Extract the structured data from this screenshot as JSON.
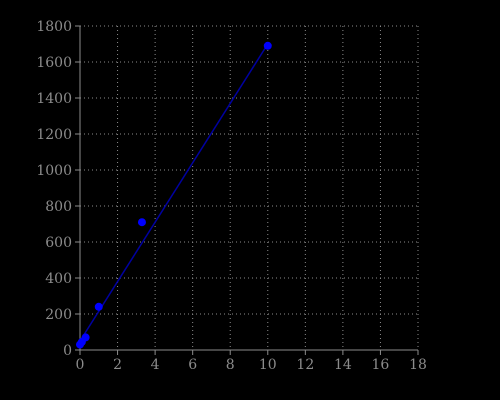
{
  "chart_data": {
    "type": "scatter",
    "title": "",
    "xlabel": "",
    "ylabel": "",
    "xlim": [
      0,
      18
    ],
    "ylim": [
      0,
      1800
    ],
    "x_ticks": [
      0,
      2,
      4,
      6,
      8,
      10,
      12,
      14,
      16,
      18
    ],
    "y_ticks": [
      0,
      200,
      400,
      600,
      800,
      1000,
      1200,
      1400,
      1600,
      1800
    ],
    "grid": true,
    "legend": "none",
    "series": [
      {
        "points": [
          {
            "x": 0.0,
            "y": 30
          },
          {
            "x": 0.1,
            "y": 45
          },
          {
            "x": 0.3,
            "y": 70
          },
          {
            "x": 1.0,
            "y": 240
          },
          {
            "x": 3.3,
            "y": 710
          },
          {
            "x": 10.0,
            "y": 1690
          }
        ],
        "color": "#0000ff"
      }
    ],
    "fit_line": {
      "points": [
        {
          "x": 0.0,
          "y": 50
        },
        {
          "x": 10.0,
          "y": 1700
        }
      ],
      "color": "#0000a0"
    },
    "colors": {
      "background": "#000000",
      "axis": "#8c8c8c",
      "grid": "#8c8c8c",
      "tick_label": "#8c8c8c"
    }
  }
}
